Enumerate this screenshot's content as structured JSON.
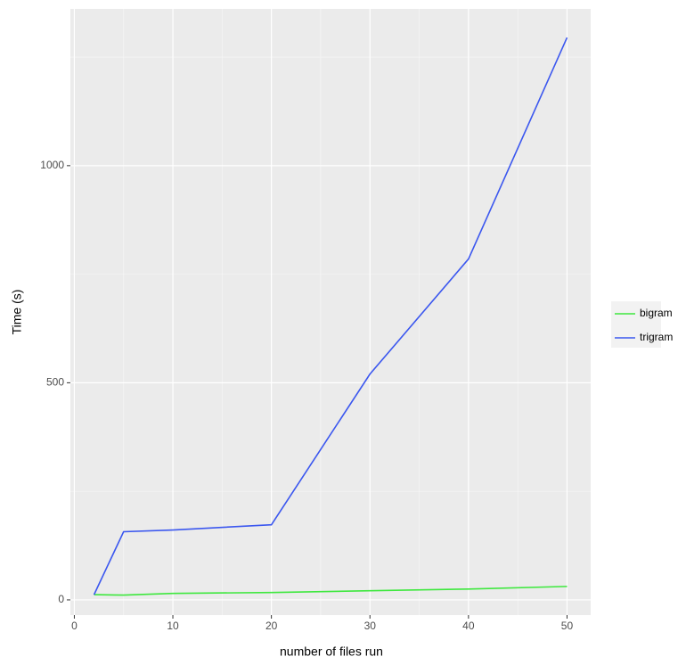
{
  "chart_data": {
    "type": "line",
    "x_label": "number of files run",
    "y_label": "Time (s)",
    "x": [
      2,
      5,
      10,
      20,
      30,
      40,
      50
    ],
    "series": [
      {
        "name": "bigram",
        "color": "#3ee83e",
        "values": [
          12,
          11,
          15,
          17,
          21,
          25,
          31
        ]
      },
      {
        "name": "trigram",
        "color": "#3b57ef",
        "values": [
          12,
          157,
          161,
          173,
          520,
          785,
          1295
        ]
      }
    ],
    "xlim": [
      -0.4,
      52.4
    ],
    "xticks": [
      0,
      10,
      20,
      30,
      40,
      50
    ],
    "xminor": [
      5,
      15,
      25,
      35,
      45
    ],
    "ylim": [
      -35,
      1361
    ],
    "yticks": [
      0,
      500,
      1000
    ],
    "yminor": [
      250,
      750,
      1250
    ],
    "grid": true,
    "legend": "right"
  }
}
